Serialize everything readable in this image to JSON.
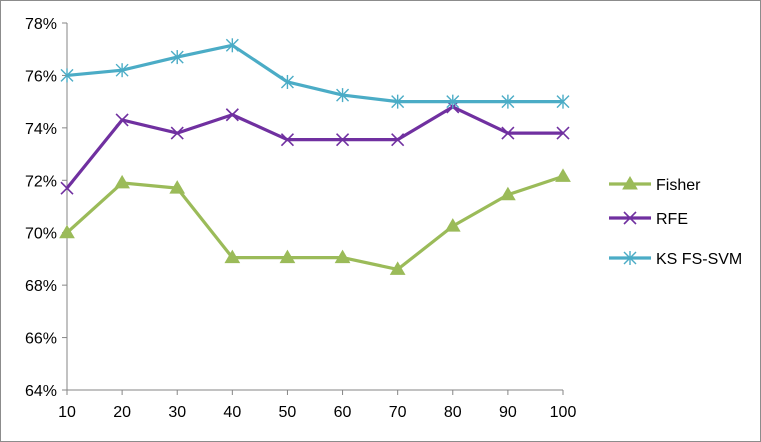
{
  "chart_data": {
    "type": "line",
    "title": "",
    "xlabel": "",
    "ylabel": "",
    "x": [
      10,
      20,
      30,
      40,
      50,
      60,
      70,
      80,
      90,
      100
    ],
    "ylim": [
      0.64,
      0.78
    ],
    "y_ticks": [
      "64%",
      "66%",
      "68%",
      "70%",
      "72%",
      "74%",
      "76%",
      "78%"
    ],
    "grid": false,
    "legend_position": "right",
    "series": [
      {
        "name": "Fisher",
        "color": "#9bbb59",
        "marker": "triangle",
        "values": [
          0.7,
          0.719,
          0.717,
          0.6905,
          0.6905,
          0.6905,
          0.686,
          0.7025,
          0.7145,
          0.7215
        ]
      },
      {
        "name": "RFE",
        "color": "#7030a0",
        "marker": "x",
        "values": [
          0.717,
          0.743,
          0.738,
          0.745,
          0.7355,
          0.7355,
          0.7355,
          0.748,
          0.738,
          0.738
        ]
      },
      {
        "name": "KS FS-SVM",
        "color": "#4bacc6",
        "marker": "star",
        "values": [
          0.76,
          0.762,
          0.767,
          0.7715,
          0.7575,
          0.7525,
          0.75,
          0.75,
          0.75,
          0.75
        ]
      }
    ]
  }
}
